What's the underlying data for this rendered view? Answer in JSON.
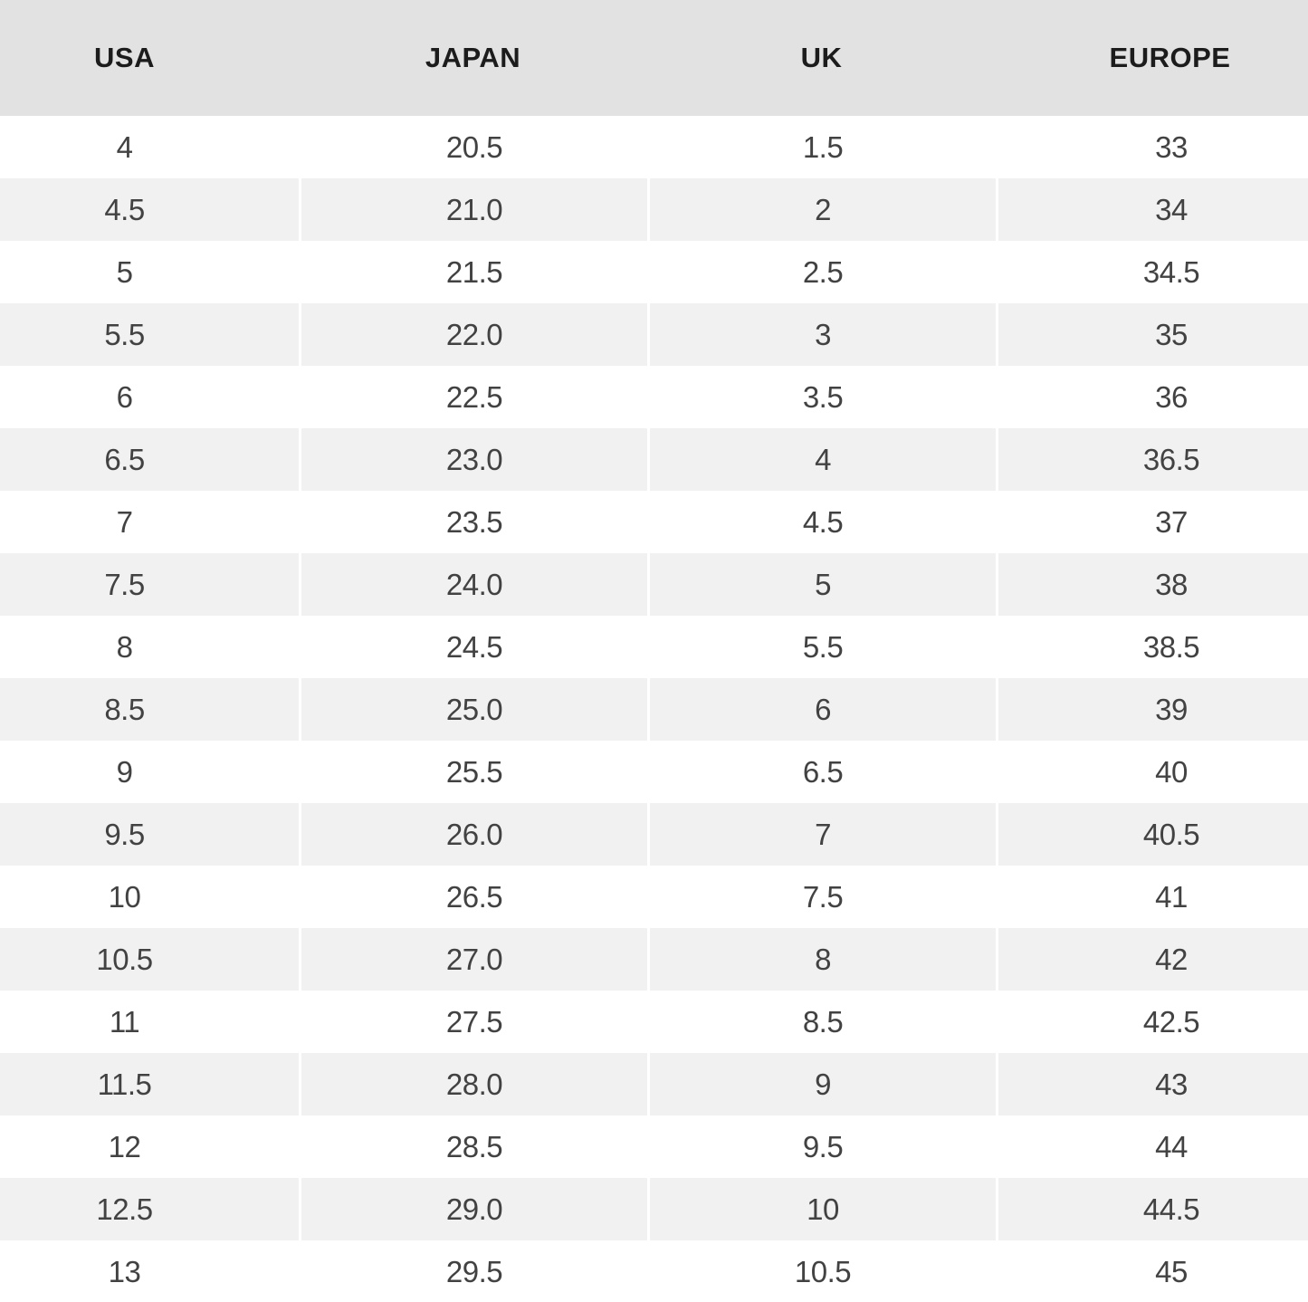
{
  "chart_data": {
    "type": "table",
    "columns": [
      "USA",
      "JAPAN",
      "UK",
      "EUROPE"
    ],
    "rows": [
      [
        "4",
        "20.5",
        "1.5",
        "33"
      ],
      [
        "4.5",
        "21.0",
        "2",
        "34"
      ],
      [
        "5",
        "21.5",
        "2.5",
        "34.5"
      ],
      [
        "5.5",
        "22.0",
        "3",
        "35"
      ],
      [
        "6",
        "22.5",
        "3.5",
        "36"
      ],
      [
        "6.5",
        "23.0",
        "4",
        "36.5"
      ],
      [
        "7",
        "23.5",
        "4.5",
        "37"
      ],
      [
        "7.5",
        "24.0",
        "5",
        "38"
      ],
      [
        "8",
        "24.5",
        "5.5",
        "38.5"
      ],
      [
        "8.5",
        "25.0",
        "6",
        "39"
      ],
      [
        "9",
        "25.5",
        "6.5",
        "40"
      ],
      [
        "9.5",
        "26.0",
        "7",
        "40.5"
      ],
      [
        "10",
        "26.5",
        "7.5",
        "41"
      ],
      [
        "10.5",
        "27.0",
        "8",
        "42"
      ],
      [
        "11",
        "27.5",
        "8.5",
        "42.5"
      ],
      [
        "11.5",
        "28.0",
        "9",
        "43"
      ],
      [
        "12",
        "28.5",
        "9.5",
        "44"
      ],
      [
        "12.5",
        "29.0",
        "10",
        "44.5"
      ],
      [
        "13",
        "29.5",
        "10.5",
        "45"
      ]
    ],
    "layout": {
      "striped": true,
      "header_position": "top",
      "text_align": "center"
    }
  },
  "colors": {
    "header_bg": "#e2e2e2",
    "stripe_bg": "#f1f1f1",
    "row_bg": "#ffffff",
    "seam": "#ffffff",
    "header_text": "#1c1c1c",
    "cell_text": "#424242"
  }
}
